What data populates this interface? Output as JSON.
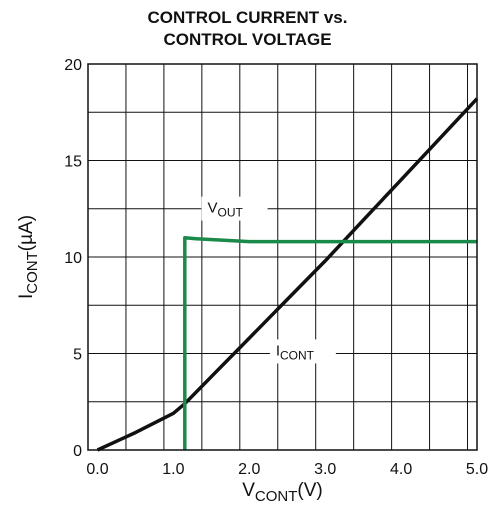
{
  "chart_data": {
    "type": "line",
    "title_line1": "CONTROL CURRENT vs.",
    "title_line2": "CONTROL VOLTAGE",
    "xlabel": {
      "main": "V",
      "sub": "CONT",
      "suffix": "(V)"
    },
    "ylabel": {
      "main": "I",
      "sub": "CONT",
      "suffix": "(µA)"
    },
    "xlim": [
      -0.125,
      5.0
    ],
    "ylim": [
      0,
      20
    ],
    "grid": true,
    "x_ticks": [
      {
        "value": 0.0,
        "label": "0.0"
      },
      {
        "value": 1.0,
        "label": "1.0"
      },
      {
        "value": 2.0,
        "label": "2.0"
      },
      {
        "value": 3.0,
        "label": "3.0"
      },
      {
        "value": 4.0,
        "label": "4.0"
      },
      {
        "value": 5.0,
        "label": "5.0"
      }
    ],
    "x_gridlines": [
      -0.125,
      0.375,
      0.875,
      1.375,
      1.875,
      2.375,
      2.875,
      3.375,
      3.875,
      4.375,
      4.875
    ],
    "y_ticks": [
      {
        "value": 0,
        "label": "0"
      },
      {
        "value": 5,
        "label": "5"
      },
      {
        "value": 10,
        "label": "10"
      },
      {
        "value": 15,
        "label": "15"
      },
      {
        "value": 20,
        "label": "20"
      }
    ],
    "y_gridlines": [
      0,
      2.5,
      5,
      7.5,
      10,
      12.5,
      15,
      17.5,
      20
    ],
    "series": [
      {
        "name": "I_CONT",
        "color": "#111111",
        "points": [
          [
            0.0,
            0.0
          ],
          [
            0.5,
            0.9
          ],
          [
            1.0,
            1.9
          ],
          [
            1.15,
            2.4
          ],
          [
            1.5,
            3.8
          ],
          [
            2.0,
            5.8
          ],
          [
            2.5,
            7.8
          ],
          [
            3.0,
            9.8
          ],
          [
            3.5,
            11.9
          ],
          [
            4.0,
            14.0
          ],
          [
            4.5,
            16.1
          ],
          [
            5.0,
            18.2
          ]
        ],
        "annotation": {
          "main": "I",
          "sub": "CONT",
          "at": [
            2.35,
            4.9
          ]
        }
      },
      {
        "name": "V_OUT",
        "color": "#1a8a4a",
        "points": [
          [
            1.15,
            0.0
          ],
          [
            1.15,
            11.0
          ],
          [
            1.3,
            10.95
          ],
          [
            2.0,
            10.8
          ],
          [
            3.0,
            10.8
          ],
          [
            4.0,
            10.8
          ],
          [
            5.0,
            10.8
          ]
        ],
        "annotation": {
          "main": "V",
          "sub": "OUT",
          "at": [
            1.45,
            12.3
          ]
        }
      }
    ]
  }
}
